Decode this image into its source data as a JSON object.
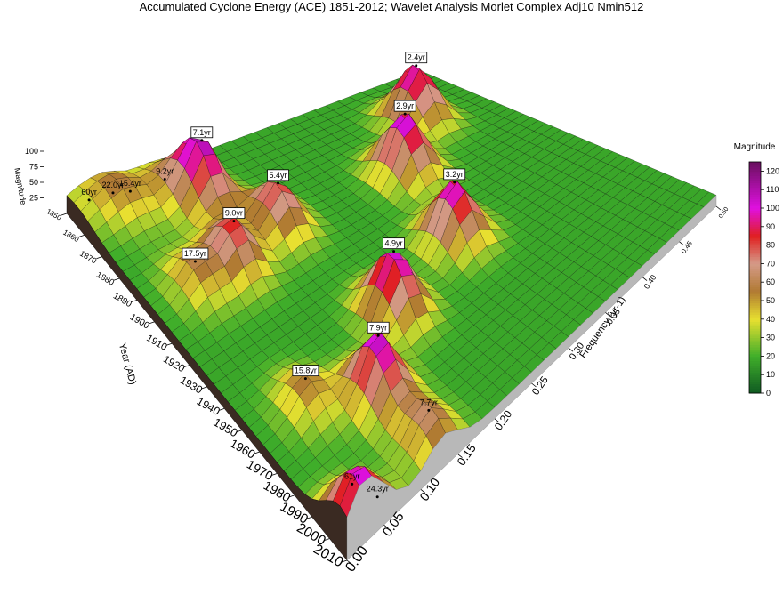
{
  "chart_data": {
    "type": "surface3d",
    "title": "Accumulated Cyclone Energy (ACE) 1851-2012; Wavelet Analysis Morlet Complex Adj10 Nmin512",
    "x_label": "Frequency (yr-1)",
    "y_label": "Year (AD)",
    "z_label": "Magnitude",
    "colorbar_label": "Magnitude",
    "xlim": [
      0,
      0.5
    ],
    "xticks": [
      {
        "value": 0,
        "label": "0.00"
      },
      {
        "value": 0.05,
        "label": "0.05"
      },
      {
        "value": 0.1,
        "label": "0.10"
      },
      {
        "value": 0.15,
        "label": "0.15"
      },
      {
        "value": 0.2,
        "label": "0.20"
      },
      {
        "value": 0.25,
        "label": "0.25"
      },
      {
        "value": 0.3,
        "label": "0.30"
      },
      {
        "value": 0.35,
        "label": "0.35"
      },
      {
        "value": 0.4,
        "label": "0.40"
      },
      {
        "value": 0.45,
        "label": "0.45"
      },
      {
        "value": 0.5,
        "label": "0.50"
      }
    ],
    "ylim": [
      1850,
      2010
    ],
    "yticks": [
      1850,
      1860,
      1870,
      1880,
      1890,
      1900,
      1910,
      1920,
      1930,
      1940,
      1950,
      1960,
      1970,
      1980,
      1990,
      2000,
      2010
    ],
    "zlim": [
      0,
      125
    ],
    "zticks": [
      25,
      50,
      75,
      100
    ],
    "cticks": [
      0,
      10,
      20,
      30,
      40,
      50,
      60,
      70,
      80,
      90,
      100,
      110,
      120
    ],
    "colorscale": [
      [
        0,
        "#0f5a22"
      ],
      [
        20,
        "#3fae2a"
      ],
      [
        40,
        "#e8e030"
      ],
      [
        55,
        "#b07a32"
      ],
      [
        70,
        "#d49a88"
      ],
      [
        85,
        "#e02020"
      ],
      [
        100,
        "#e010e0"
      ],
      [
        125,
        "#6a1060"
      ]
    ],
    "peaks": [
      {
        "label": "60yr",
        "frequency": 0.0167,
        "year": 1856,
        "magnitude": 35,
        "boxed": false
      },
      {
        "label": "22.0yr",
        "frequency": 0.0455,
        "year": 1858,
        "magnitude": 40,
        "boxed": false
      },
      {
        "label": "15.4yr",
        "frequency": 0.0649,
        "year": 1860,
        "magnitude": 40,
        "boxed": false
      },
      {
        "label": "9.2yr",
        "frequency": 0.1087,
        "year": 1862,
        "magnitude": 45,
        "boxed": false
      },
      {
        "label": "7.1yr",
        "frequency": 0.1408,
        "year": 1870,
        "magnitude": 115,
        "boxed": true
      },
      {
        "label": "2.4yr",
        "frequency": 0.4167,
        "year": 1880,
        "magnitude": 110,
        "boxed": true
      },
      {
        "label": "2.9yr",
        "frequency": 0.3448,
        "year": 1902,
        "magnitude": 115,
        "boxed": true
      },
      {
        "label": "5.4yr",
        "frequency": 0.1852,
        "year": 1895,
        "magnitude": 90,
        "boxed": true
      },
      {
        "label": "9.0yr",
        "frequency": 0.1111,
        "year": 1900,
        "magnitude": 90,
        "boxed": true
      },
      {
        "label": "17.5yr",
        "frequency": 0.0571,
        "year": 1900,
        "magnitude": 60,
        "boxed": true
      },
      {
        "label": "3.2yr",
        "frequency": 0.3125,
        "year": 1942,
        "magnitude": 110,
        "boxed": true
      },
      {
        "label": "4.9yr",
        "frequency": 0.2041,
        "year": 1952,
        "magnitude": 115,
        "boxed": true
      },
      {
        "label": "7.9yr",
        "frequency": 0.1266,
        "year": 1975,
        "magnitude": 115,
        "boxed": true
      },
      {
        "label": "15.8yr",
        "frequency": 0.0633,
        "year": 1960,
        "magnitude": 60,
        "boxed": true
      },
      {
        "label": "7.7yr",
        "frequency": 0.1299,
        "year": 2002,
        "magnitude": 70,
        "boxed": false
      },
      {
        "label": "61yr",
        "frequency": 0.0164,
        "year": 2006,
        "magnitude": 90,
        "boxed": false
      },
      {
        "label": "24.3yr",
        "frequency": 0.0412,
        "year": 2010,
        "magnitude": 55,
        "boxed": false
      }
    ]
  }
}
